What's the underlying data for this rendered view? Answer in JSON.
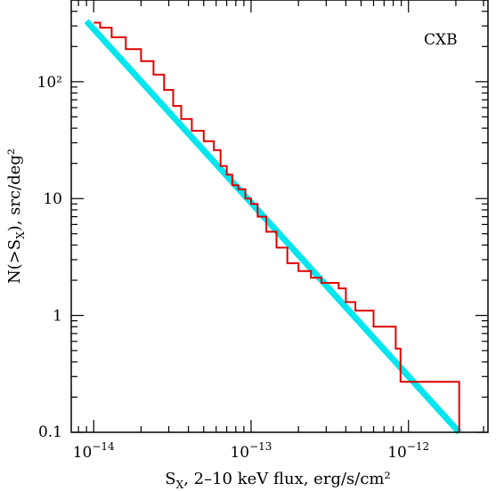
{
  "chart_data": {
    "type": "line",
    "title": "",
    "annotation": "CXB",
    "xlabel_parts": [
      "S",
      "X",
      ", 2–10 keV flux, erg/s/cm²"
    ],
    "ylabel_parts": [
      "N(>S",
      "X",
      "), src/deg²"
    ],
    "x_scale": "log",
    "y_scale": "log",
    "xlim": [
      7.2e-15,
      3.2e-12
    ],
    "ylim": [
      0.1,
      500
    ],
    "grid": false,
    "legend": "none",
    "x_ticks": [
      {
        "value": 1e-14,
        "mantissa": "10",
        "exp": "−14"
      },
      {
        "value": 1e-13,
        "mantissa": "10",
        "exp": "−13"
      },
      {
        "value": 1e-12,
        "mantissa": "10",
        "exp": "−12"
      }
    ],
    "y_ticks": [
      {
        "value": 0.1,
        "label": "0.1"
      },
      {
        "value": 1,
        "label": "1"
      },
      {
        "value": 10,
        "label": "10"
      },
      {
        "value": 100,
        "label": "10²"
      }
    ],
    "series": [
      {
        "color": "#e00000",
        "style": "step",
        "x": [
          1e-14,
          1.1e-14,
          1.3e-14,
          1.6e-14,
          2e-14,
          2.4e-14,
          2.8e-14,
          3.2e-14,
          3.6e-14,
          4.2e-14,
          5e-14,
          5.8e-14,
          6.4e-14,
          7e-14,
          7.6e-14,
          8.3e-14,
          9.2e-14,
          1e-13,
          1.1e-13,
          1.25e-13,
          1.45e-13,
          1.7e-13,
          2e-13,
          2.4e-13,
          2.8e-13,
          3.6e-13,
          4e-13,
          4.6e-13,
          6e-13,
          8.3e-13,
          8.9e-13,
          2.1e-12
        ],
        "y": [
          320,
          290,
          240,
          190,
          150,
          115,
          85,
          62,
          48,
          38,
          31,
          26,
          19,
          16,
          13,
          12,
          10,
          9,
          7,
          5.2,
          3.8,
          2.8,
          2.4,
          2.1,
          1.9,
          1.7,
          1.3,
          1.1,
          0.8,
          0.52,
          0.27,
          0.1
        ]
      },
      {
        "color": "#00e5ee",
        "style": "line",
        "x": [
          9e-15,
          2.1e-12
        ],
        "y": [
          330,
          0.1
        ]
      }
    ]
  }
}
